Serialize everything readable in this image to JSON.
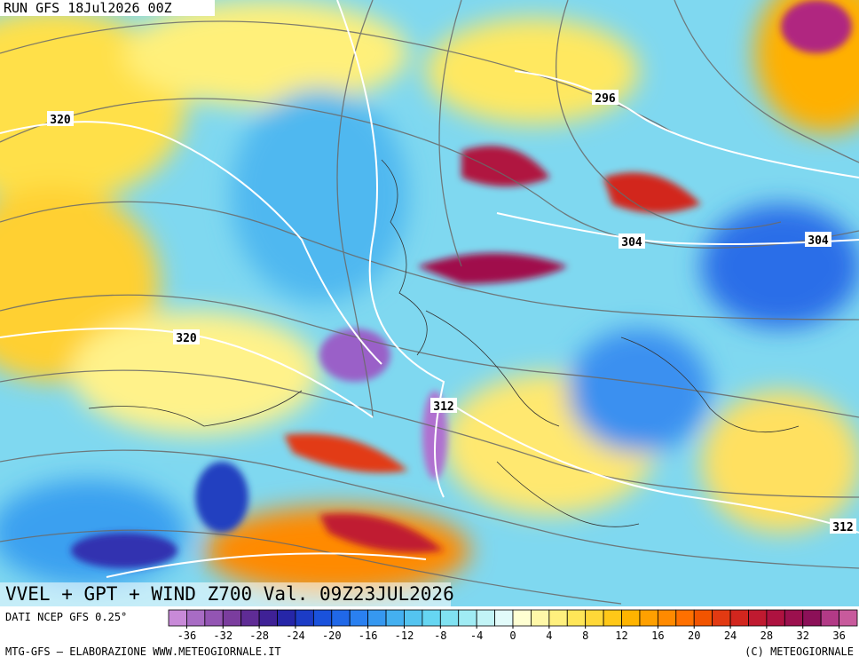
{
  "header": {
    "run": "RUN GFS 18Jul2026 00Z"
  },
  "map": {
    "contour_labels": [
      "320",
      "296",
      "304",
      "304",
      "320",
      "312",
      "312"
    ]
  },
  "title": "VVEL + GPT + WIND Z700 Val. 09Z23JUL2026",
  "source": "DATI NCEP GFS 0.25°",
  "colorbar": {
    "ticks": [
      -36,
      -32,
      -28,
      -24,
      -20,
      -16,
      -12,
      -8,
      -4,
      0,
      4,
      8,
      12,
      16,
      20,
      24,
      28,
      32,
      36
    ],
    "lim": [
      -38,
      38
    ],
    "colors": [
      "#c88ad8",
      "#a86cc4",
      "#9355b3",
      "#7b3d9e",
      "#5f2c95",
      "#3f2196",
      "#2626a8",
      "#1c3cc6",
      "#1a52dc",
      "#2068e8",
      "#2a80f0",
      "#3698f0",
      "#44b0f0",
      "#54c4f0",
      "#66d6f2",
      "#80e2f2",
      "#a0ecf4",
      "#c2f4f6",
      "#e2fbfa",
      "#ffffd2",
      "#fff8a8",
      "#fff07e",
      "#ffe658",
      "#ffd838",
      "#ffc818",
      "#ffb400",
      "#ffa000",
      "#ff8a00",
      "#ff7000",
      "#f25400",
      "#e23a12",
      "#d2261e",
      "#c01a30",
      "#ae1240",
      "#9c104e",
      "#8c1058",
      "#b23a86",
      "#c85a9c"
    ]
  },
  "footer": {
    "left": "MTG-GFS — ELABORAZIONE WWW.METEOGIORNALE.IT",
    "right": "(C) METEOGIORNALE"
  }
}
